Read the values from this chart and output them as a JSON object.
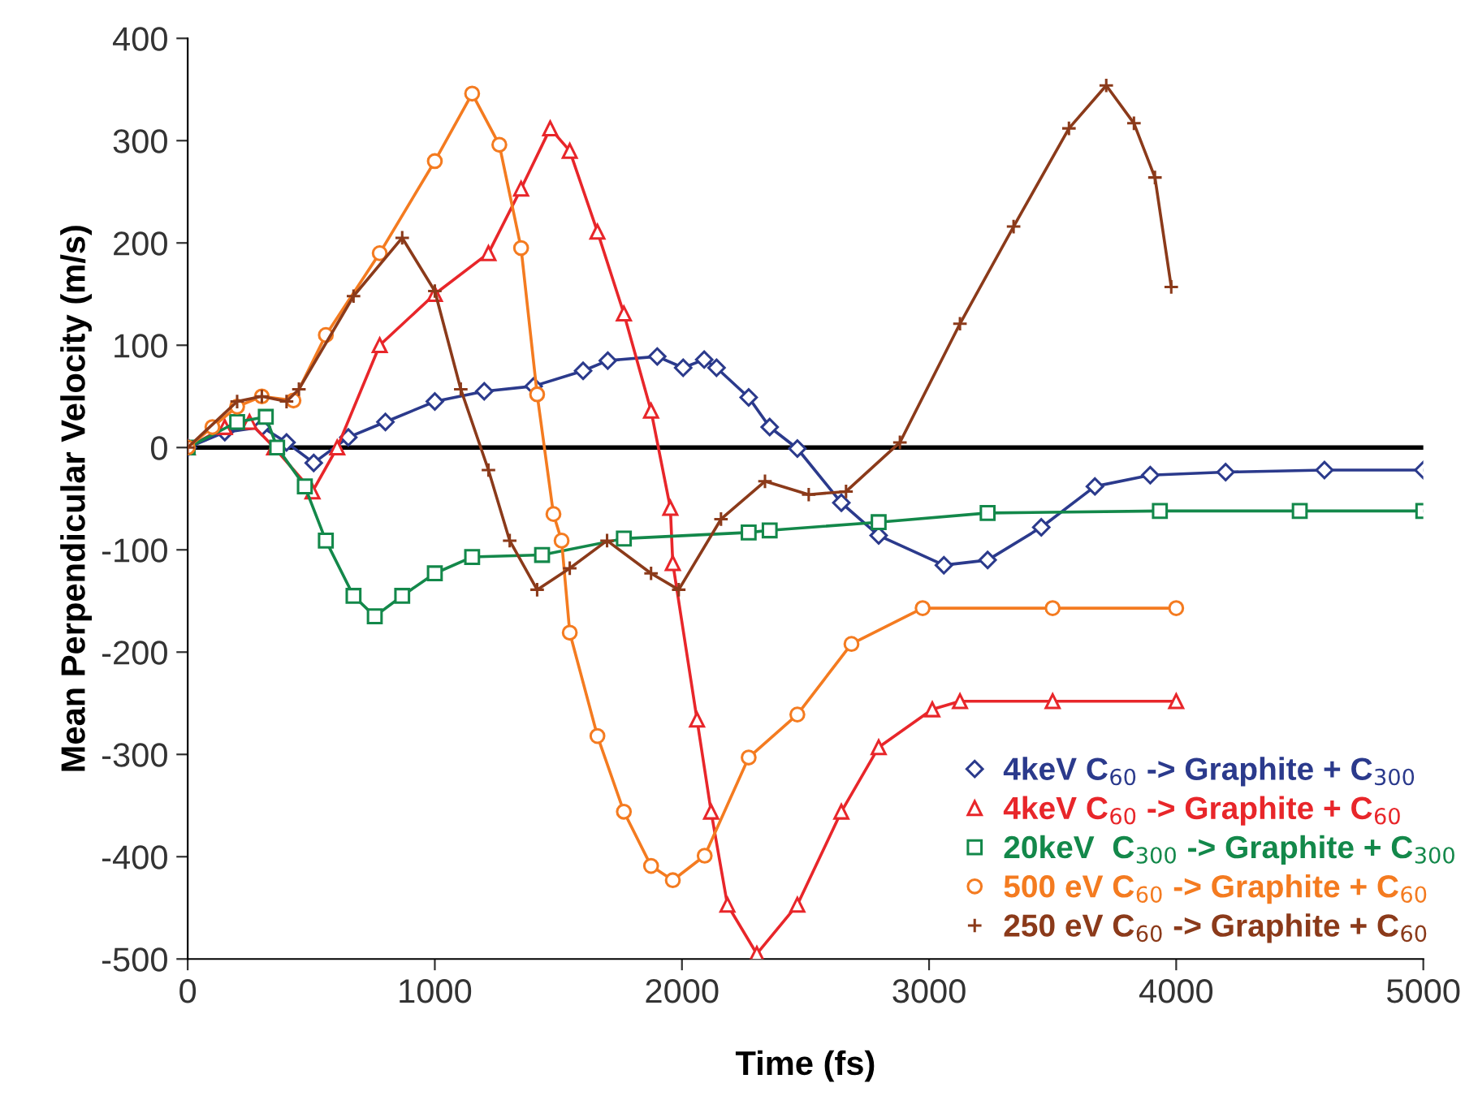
{
  "chart_data": {
    "type": "line",
    "xlabel": "Time (fs)",
    "ylabel": "Mean Perpendicular Velocity (m/s)",
    "xlim": [
      0,
      5000
    ],
    "xticks": [
      0,
      1000,
      2000,
      3000,
      4000,
      5000
    ],
    "ylim": [
      -500,
      400
    ],
    "yticks": [
      -500,
      -400,
      -300,
      -200,
      -100,
      0,
      100,
      200,
      300,
      400
    ],
    "grid": false,
    "legend": "bottom right",
    "ref_lines": [
      {
        "axis": "y",
        "value": 0,
        "color": "#000000"
      }
    ],
    "series": [
      {
        "name": "4keV C$_{60}$ -> Graphite + C$_{300}$",
        "color": "#2b3a8c",
        "marker": "diamond",
        "x": [
          0,
          150,
          300,
          400,
          510,
          650,
          800,
          1000,
          1200,
          1400,
          1600,
          1700,
          1900,
          2005,
          2090,
          2140,
          2270,
          2355,
          2467,
          2645,
          2796,
          3060,
          3237,
          3454,
          3671,
          3895,
          4200,
          4600,
          5000
        ],
        "values": [
          0,
          15,
          20,
          5,
          -15,
          10,
          25,
          45,
          55,
          60,
          75,
          85,
          89,
          78,
          86,
          78,
          49,
          20,
          -1,
          -54,
          -86,
          -115,
          -110,
          -78,
          -38,
          -27,
          -24,
          -22,
          -22
        ]
      },
      {
        "name": "4keV C$_{60}$ -> Graphite + C$_{60}$",
        "color": "#e8262a",
        "marker": "triangle",
        "x": [
          0,
          150,
          250,
          350,
          505,
          605,
          777,
          1000,
          1217,
          1349,
          1467,
          1546,
          1658,
          1765,
          1875,
          1953,
          1963,
          2061,
          2118,
          2184,
          2303,
          2467,
          2645,
          2796,
          3013,
          3125,
          3500,
          4000
        ],
        "values": [
          0,
          20,
          25,
          0,
          -43,
          0,
          100,
          150,
          190,
          253,
          312,
          290,
          211,
          131,
          36,
          -59,
          -113,
          -266,
          -356,
          -447,
          -495,
          -447,
          -356,
          -293,
          -256,
          -248,
          -248,
          -248
        ]
      },
      {
        "name": "20keV  C$_{300}$ -> Graphite + C$_{300}$",
        "color": "#13884a",
        "marker": "square",
        "x": [
          0,
          200,
          316,
          362,
          474,
          559,
          671,
          757,
          868,
          1000,
          1151,
          1434,
          1765,
          2270,
          2355,
          2796,
          3237,
          3934,
          4500,
          5000
        ],
        "values": [
          0,
          25,
          30,
          0,
          -38,
          -91,
          -145,
          -165,
          -145,
          -123,
          -107,
          -105,
          -89,
          -83,
          -81,
          -73,
          -64,
          -62,
          -62,
          -62
        ]
      },
      {
        "name": "500 eV C$_{60}$ -> Graphite + C$_{60}$",
        "color": "#f47b20",
        "marker": "circle",
        "x": [
          0,
          100,
          200,
          300,
          428,
          559,
          777,
          1000,
          1151,
          1261,
          1349,
          1414,
          1480,
          1513,
          1546,
          1658,
          1765,
          1875,
          1963,
          2092,
          2270,
          2467,
          2686,
          2974,
          3500,
          4000
        ],
        "values": [
          0,
          20,
          40,
          50,
          46,
          110,
          190,
          280,
          346,
          296,
          195,
          52,
          -65,
          -91,
          -181,
          -282,
          -356,
          -409,
          -423,
          -399,
          -303,
          -261,
          -192,
          -157,
          -157,
          -157
        ]
      },
      {
        "name": "250 eV C$_{60}$ -> Graphite + C$_{60}$",
        "color": "#8b3a1a",
        "marker": "cross",
        "x": [
          0,
          200,
          300,
          400,
          450,
          671,
          868,
          1000,
          1105,
          1217,
          1303,
          1414,
          1546,
          1697,
          1875,
          1987,
          2158,
          2336,
          2513,
          2664,
          2882,
          3125,
          3342,
          3566,
          3717,
          3829,
          3914,
          3980
        ],
        "values": [
          0,
          45,
          50,
          45,
          57,
          148,
          205,
          153,
          57,
          -22,
          -91,
          -139,
          -118,
          -91,
          -123,
          -139,
          -70,
          -33,
          -46,
          -43,
          5,
          121,
          216,
          312,
          354,
          317,
          264,
          157
        ]
      }
    ]
  }
}
